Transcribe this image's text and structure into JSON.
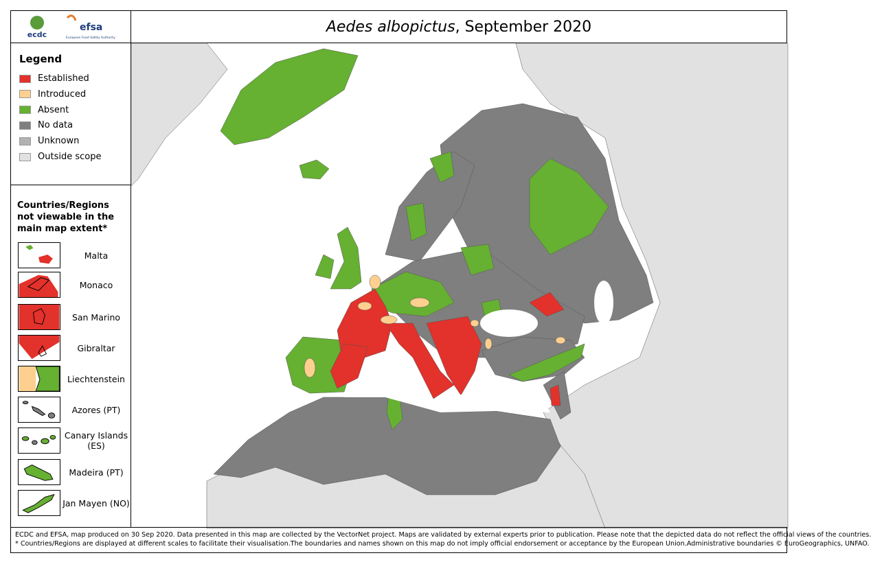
{
  "header": {
    "logos": [
      "ecdc",
      "efsa",
      "European Food Safety Authority"
    ],
    "title_italic": "Aedes albopictus",
    "title_rest": ", September 2020"
  },
  "legend": {
    "title": "Legend",
    "items": [
      {
        "label": "Established",
        "color": "#e3312b"
      },
      {
        "label": "Introduced",
        "color": "#fdd08f"
      },
      {
        "label": "Absent",
        "color": "#66b032"
      },
      {
        "label": "No data",
        "color": "#7f7f7f"
      },
      {
        "label": "Unknown",
        "color": "#b2b2b2"
      },
      {
        "label": "Outside scope",
        "color": "#e1e1e1"
      }
    ]
  },
  "insets": {
    "title": "Countries/Regions not viewable in the main map extent*",
    "items": [
      "Malta",
      "Monaco",
      "San Marino",
      "Gibraltar",
      "Liechtenstein",
      "Azores (PT)",
      "Canary Islands (ES)",
      "Madeira (PT)",
      "Jan Mayen (NO)"
    ]
  },
  "footer": [
    "ECDC and EFSA, map produced on 30 Sep 2020. Data presented in this map are collected by the VectorNet project. Maps are validated by external experts prior to publication. Please note that the depicted data do not reflect the official views of the countries.",
    "* Countries/Regions are displayed at different scales to facilitate their visualisation.The boundaries and names shown on this map do not imply official endorsement or acceptance by the European Union.Administrative boundaries © EuroGeographics, UNFAO."
  ]
}
